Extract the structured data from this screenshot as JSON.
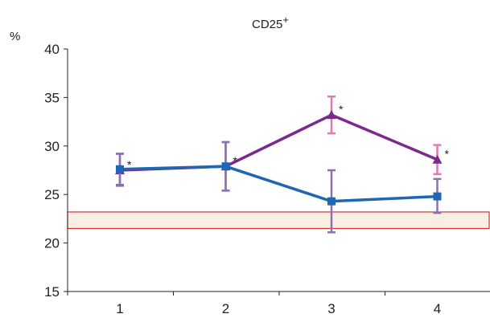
{
  "chart_data": {
    "type": "line",
    "title": "CD25",
    "title_superscript": "+",
    "ylabel": "%",
    "xlabel": "",
    "categories": [
      "1",
      "2",
      "3",
      "4"
    ],
    "ylim": [
      15,
      40
    ],
    "yticks": [
      15,
      20,
      25,
      30,
      35,
      40
    ],
    "grid": false,
    "legend": "none",
    "reference_band": {
      "min": 21.5,
      "max": 23.2,
      "fill": "#fbeee3",
      "stroke": "#e03030"
    },
    "series": [
      {
        "marker": "triangle",
        "color": "#7a2a8c",
        "error_colors": [
          "#8b6fb0",
          "#8b6fb0",
          "#e676b0",
          "#e676b0"
        ],
        "values": [
          27.5,
          27.9,
          33.2,
          28.6
        ],
        "err_low": [
          25.9,
          25.4,
          31.3,
          27.1
        ],
        "err_high": [
          29.2,
          30.4,
          35.1,
          30.1
        ],
        "annotations": [
          "*",
          "*",
          "*",
          "*"
        ]
      },
      {
        "marker": "square",
        "color": "#1f66b3",
        "error_colors": [
          "#8b6fb0",
          "#8b6fb0",
          "#8b6fb0",
          "#8b6fb0"
        ],
        "values": [
          27.6,
          27.9,
          24.3,
          24.8
        ],
        "err_low": [
          26.0,
          25.4,
          21.1,
          23.1
        ],
        "err_high": [
          29.2,
          30.4,
          27.5,
          26.6
        ],
        "annotations": [
          "",
          "",
          "",
          ""
        ]
      }
    ]
  }
}
